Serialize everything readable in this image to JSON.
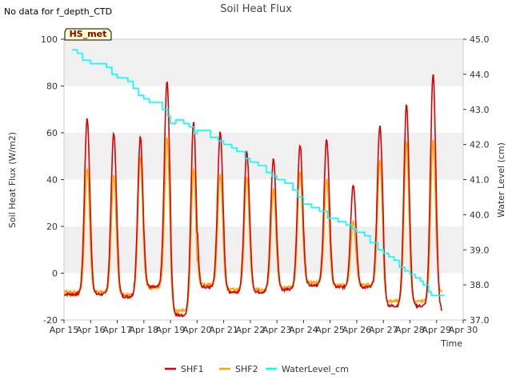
{
  "chart_data": {
    "type": "line",
    "title": "Soil Heat Flux",
    "note": "No data for f_depth_CTD",
    "badge": "HS_met",
    "xlabel": "Time",
    "ylabel": "Soil Heat Flux (W/m2)",
    "y2label": "Water Level (cm)",
    "xlim": [
      15,
      30
    ],
    "ylim": [
      -20,
      100
    ],
    "y2lim": [
      37.0,
      45.0
    ],
    "x_ticks": [
      {
        "v": 15,
        "label": "Apr 15"
      },
      {
        "v": 16,
        "label": "Apr 16"
      },
      {
        "v": 17,
        "label": "Apr 17"
      },
      {
        "v": 18,
        "label": "Apr 18"
      },
      {
        "v": 19,
        "label": "Apr 19"
      },
      {
        "v": 20,
        "label": "Apr 20"
      },
      {
        "v": 21,
        "label": "Apr 21"
      },
      {
        "v": 22,
        "label": "Apr 22"
      },
      {
        "v": 23,
        "label": "Apr 23"
      },
      {
        "v": 24,
        "label": "Apr 24"
      },
      {
        "v": 25,
        "label": "Apr 25"
      },
      {
        "v": 26,
        "label": "Apr 26"
      },
      {
        "v": 27,
        "label": "Apr 27"
      },
      {
        "v": 28,
        "label": "Apr 28"
      },
      {
        "v": 29,
        "label": "Apr 29"
      },
      {
        "v": 30,
        "label": "Apr 30"
      }
    ],
    "y_ticks": [
      -20,
      0,
      20,
      40,
      60,
      80,
      100
    ],
    "y2_ticks": [
      "37.0",
      "38.0",
      "39.0",
      "40.0",
      "41.0",
      "42.0",
      "43.0",
      "44.0",
      "45.0"
    ],
    "daily_min": {
      "SHF1": [
        -9,
        -9,
        -10,
        -6,
        -18,
        -6,
        -8,
        -8,
        -7,
        -5,
        -6,
        -6,
        -14,
        -14,
        -16,
        -5
      ],
      "SHF2": [
        -8,
        -8,
        -9,
        -6,
        -16,
        -5,
        -7,
        -7,
        -6,
        -4,
        -5,
        -5,
        -12,
        -12,
        -8,
        -4
      ]
    },
    "series": [
      {
        "name": "SHF1",
        "color": "#dd0000",
        "axis": "left",
        "daily_peaks": [
          {
            "day": 15.87,
            "value": 66
          },
          {
            "day": 16.87,
            "value": 60
          },
          {
            "day": 17.87,
            "value": 58
          },
          {
            "day": 18.87,
            "value": 82
          },
          {
            "day": 19.87,
            "value": 65
          },
          {
            "day": 20.87,
            "value": 60
          },
          {
            "day": 21.87,
            "value": 52
          },
          {
            "day": 22.87,
            "value": 49
          },
          {
            "day": 23.87,
            "value": 55
          },
          {
            "day": 24.87,
            "value": 57
          },
          {
            "day": 25.87,
            "value": 38
          },
          {
            "day": 26.87,
            "value": 63
          },
          {
            "day": 27.87,
            "value": 72
          },
          {
            "day": 28.87,
            "value": 85
          }
        ]
      },
      {
        "name": "SHF2",
        "color": "#ffa500",
        "axis": "left",
        "daily_peaks": [
          {
            "day": 15.87,
            "value": 45
          },
          {
            "day": 16.87,
            "value": 42
          },
          {
            "day": 17.87,
            "value": 50
          },
          {
            "day": 18.87,
            "value": 58
          },
          {
            "day": 19.87,
            "value": 45
          },
          {
            "day": 20.87,
            "value": 42
          },
          {
            "day": 21.87,
            "value": 41
          },
          {
            "day": 22.87,
            "value": 36
          },
          {
            "day": 23.87,
            "value": 43
          },
          {
            "day": 24.87,
            "value": 40
          },
          {
            "day": 25.87,
            "value": 22
          },
          {
            "day": 26.87,
            "value": 48
          },
          {
            "day": 27.87,
            "value": 56
          },
          {
            "day": 28.87,
            "value": 57
          }
        ]
      },
      {
        "name": "WaterLevel_cm",
        "color": "#00ffff",
        "axis": "right",
        "x": [
          15.3,
          15.5,
          15.7,
          16.0,
          16.3,
          16.6,
          16.8,
          17.0,
          17.2,
          17.4,
          17.6,
          17.8,
          18.0,
          18.2,
          18.5,
          18.7,
          18.9,
          19.0,
          19.2,
          19.5,
          19.7,
          19.9,
          20.0,
          20.3,
          20.5,
          20.8,
          21.0,
          21.3,
          21.5,
          21.8,
          22.0,
          22.3,
          22.6,
          22.8,
          23.0,
          23.3,
          23.6,
          23.8,
          24.0,
          24.3,
          24.6,
          24.9,
          25.1,
          25.3,
          25.6,
          25.8,
          26.0,
          26.3,
          26.5,
          26.8,
          27.0,
          27.2,
          27.4,
          27.6,
          27.8,
          28.0,
          28.2,
          28.4,
          28.5,
          28.7,
          28.8,
          29.0,
          29.2,
          29.3
        ],
        "values": [
          44.7,
          44.6,
          44.4,
          44.3,
          44.3,
          44.2,
          44.0,
          43.9,
          43.9,
          43.8,
          43.6,
          43.4,
          43.3,
          43.2,
          43.2,
          43.0,
          42.8,
          42.6,
          42.7,
          42.6,
          42.5,
          42.3,
          42.4,
          42.4,
          42.2,
          42.1,
          42.0,
          41.9,
          41.8,
          41.6,
          41.5,
          41.4,
          41.2,
          41.1,
          41.0,
          40.9,
          40.7,
          40.5,
          40.3,
          40.2,
          40.1,
          39.9,
          39.9,
          39.8,
          39.7,
          39.6,
          39.5,
          39.4,
          39.2,
          39.0,
          38.9,
          38.8,
          38.7,
          38.5,
          38.4,
          38.3,
          38.2,
          38.1,
          38.0,
          37.8,
          37.7,
          37.7,
          37.7,
          37.7
        ]
      }
    ],
    "legend": [
      "SHF1",
      "SHF2",
      "WaterLevel_cm"
    ],
    "legend_position": "bottom-center"
  }
}
